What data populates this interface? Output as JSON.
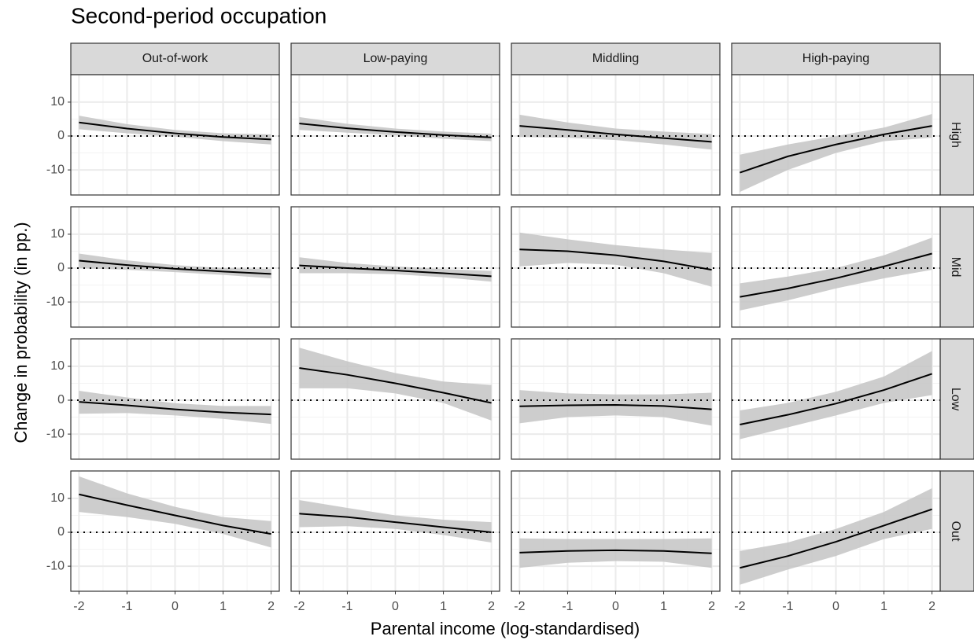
{
  "chart_data": {
    "type": "line",
    "title": "Second-period occupation",
    "x_label": "Parental income (log-standardised)",
    "y_label": "Change in probability (in pp.)",
    "columns": [
      "Out-of-work",
      "Low-paying",
      "Middling",
      "High-paying"
    ],
    "rows": [
      "High",
      "Mid",
      "Low",
      "Out"
    ],
    "x": [
      -2,
      -1,
      0,
      1,
      2
    ],
    "xlim": [
      -2.17,
      2.17
    ],
    "ylim": [
      -17.4,
      18.1
    ],
    "xticks": [
      -2,
      -1,
      0,
      1,
      2
    ],
    "yticks": [
      -10,
      0,
      10
    ],
    "hline": 0,
    "grid": true,
    "color": "#000000",
    "ribbon_color": "#c4c4c4",
    "panels": [
      [
        {
          "values": [
            4,
            2.2,
            0.8,
            -0.3,
            -1
          ],
          "lower": [
            2,
            0.8,
            -0.2,
            -1.5,
            -2.5
          ],
          "upper": [
            6,
            3.5,
            1.8,
            0.8,
            0.5
          ]
        },
        {
          "values": [
            3.7,
            2.3,
            1.2,
            0.3,
            -0.4
          ],
          "lower": [
            1.8,
            1,
            0.2,
            -0.8,
            -1.5
          ],
          "upper": [
            5.6,
            3.6,
            2.2,
            1.3,
            0.7
          ]
        },
        {
          "values": [
            3,
            1.8,
            0.5,
            -0.6,
            -1.7
          ],
          "lower": [
            -0.3,
            -0.5,
            -1.2,
            -2.5,
            -4
          ],
          "upper": [
            6.3,
            4,
            2.2,
            1.3,
            0.6
          ]
        },
        {
          "values": [
            -10.8,
            -6,
            -2.5,
            0.5,
            3
          ],
          "lower": [
            -16.5,
            -10,
            -5,
            -1.5,
            -0.5
          ],
          "upper": [
            -5.5,
            -2.5,
            0,
            2.5,
            6.5
          ]
        }
      ],
      [
        {
          "values": [
            2.2,
            0.9,
            -0.2,
            -1,
            -1.7
          ],
          "lower": [
            0,
            -0.5,
            -1.2,
            -2,
            -3
          ],
          "upper": [
            4.3,
            2.3,
            0.9,
            0,
            -0.3
          ]
        },
        {
          "values": [
            0.8,
            0,
            -0.7,
            -1.5,
            -2.4
          ],
          "lower": [
            -1.5,
            -1.5,
            -1.8,
            -2.7,
            -4
          ],
          "upper": [
            3.2,
            1.5,
            0.5,
            -0.3,
            -0.8
          ]
        },
        {
          "values": [
            5.5,
            5,
            3.8,
            2,
            -0.5
          ],
          "lower": [
            0.5,
            1.5,
            1,
            -1.5,
            -5.5
          ],
          "upper": [
            10.5,
            8.5,
            6.8,
            5.5,
            4.5
          ]
        },
        {
          "values": [
            -8.5,
            -6,
            -3,
            0.5,
            4.3
          ],
          "lower": [
            -12.5,
            -9.5,
            -6,
            -3,
            -0.5
          ],
          "upper": [
            -4.5,
            -2.5,
            0,
            3.8,
            9
          ]
        }
      ],
      [
        {
          "values": [
            -0.5,
            -1.5,
            -2.7,
            -3.6,
            -4.2
          ],
          "lower": [
            -4,
            -3.8,
            -4.5,
            -5.5,
            -7
          ],
          "upper": [
            2.8,
            0.8,
            -0.9,
            -1.7,
            -1.7
          ]
        },
        {
          "values": [
            9.5,
            7.5,
            5,
            2.2,
            -0.8
          ],
          "lower": [
            3.5,
            3.5,
            2,
            -0.8,
            -6
          ],
          "upper": [
            15.5,
            11.5,
            8,
            5.5,
            4.5
          ]
        },
        {
          "values": [
            -1.8,
            -1.5,
            -1.4,
            -1.7,
            -2.7
          ],
          "lower": [
            -6.8,
            -5,
            -4.5,
            -5,
            -7.5
          ],
          "upper": [
            3,
            2,
            1.7,
            1.7,
            2.2
          ]
        },
        {
          "values": [
            -7.2,
            -4.3,
            -1,
            3,
            7.8
          ],
          "lower": [
            -11.5,
            -8,
            -4.5,
            -0.8,
            1.5
          ],
          "upper": [
            -3,
            -0.8,
            2.5,
            7,
            14.5
          ]
        }
      ],
      [
        {
          "values": [
            11.2,
            8,
            5,
            2,
            -0.5
          ],
          "lower": [
            6,
            4.5,
            2.5,
            -0.5,
            -4.5
          ],
          "upper": [
            16.5,
            11.5,
            7.5,
            4.5,
            3.3
          ]
        },
        {
          "values": [
            5.5,
            4.5,
            3,
            1.5,
            0
          ],
          "lower": [
            1.5,
            1.8,
            1,
            -0.8,
            -3
          ],
          "upper": [
            9.5,
            7.2,
            5,
            3.7,
            3
          ]
        },
        {
          "values": [
            -6,
            -5.5,
            -5.3,
            -5.5,
            -6.2
          ],
          "lower": [
            -10.5,
            -9,
            -8.5,
            -8.7,
            -10.5
          ],
          "upper": [
            -1.8,
            -2,
            -2,
            -2,
            -1.8
          ]
        },
        {
          "values": [
            -10.5,
            -7,
            -2.8,
            2,
            6.8
          ],
          "lower": [
            -15.5,
            -11,
            -7,
            -2,
            1
          ],
          "upper": [
            -5.5,
            -3,
            1,
            6,
            13
          ]
        }
      ]
    ]
  }
}
